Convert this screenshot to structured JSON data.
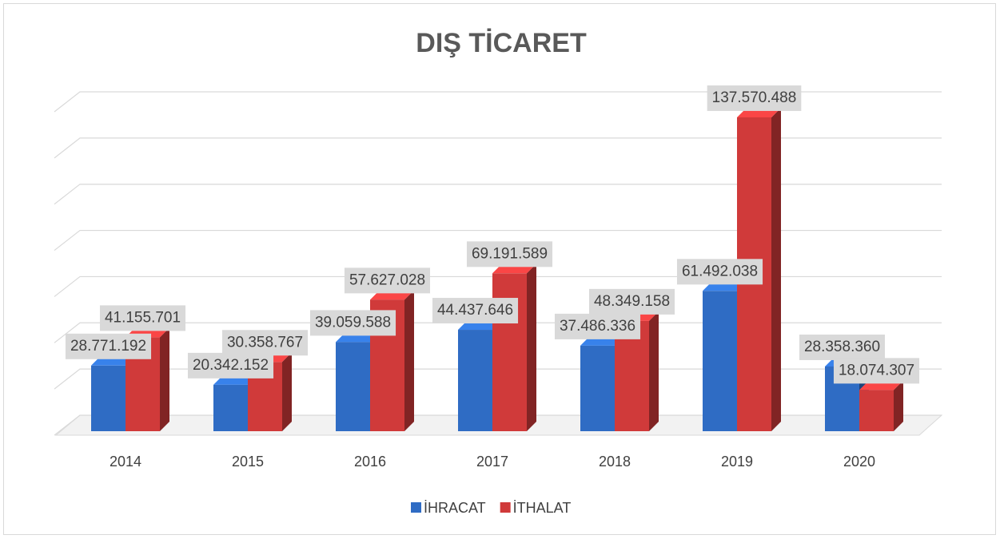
{
  "chart_data": {
    "type": "bar3d",
    "title": "DIŞ TİCARET",
    "categories": [
      "2014",
      "2015",
      "2016",
      "2017",
      "2018",
      "2019",
      "2020"
    ],
    "series": [
      {
        "name": "İHRACAT",
        "color": "#2f6cc4",
        "values": [
          28771192,
          20342152,
          39059588,
          44437646,
          37486336,
          61492038,
          28358360
        ],
        "value_labels": [
          "28.771.192",
          "20.342.152",
          "39.059.588",
          "44.437.646",
          "37.486.336",
          "61.492.038",
          "28.358.360"
        ]
      },
      {
        "name": "İTHALAT",
        "color": "#d03a3a",
        "values": [
          41155701,
          30358767,
          57627028,
          69191589,
          48349158,
          137570488,
          18074307
        ],
        "value_labels": [
          "41.155.701",
          "30.358.767",
          "57.627.028",
          "69.191.589",
          "48.349.158",
          "137.570.488",
          "18.074.307"
        ]
      }
    ],
    "ylim": [
      0,
      140000000
    ],
    "yticks": [
      0,
      20000000,
      40000000,
      60000000,
      80000000,
      100000000,
      120000000,
      140000000
    ],
    "grid": true,
    "legend": "bottom"
  }
}
